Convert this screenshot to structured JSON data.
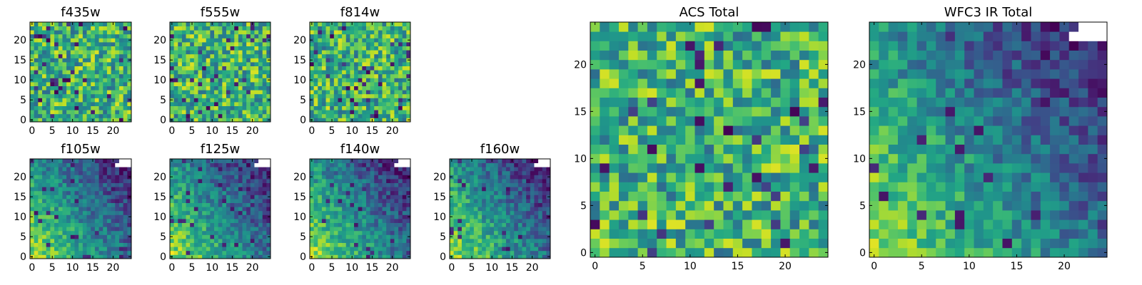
{
  "chart_data": [
    {
      "type": "heatmap",
      "title": "f435w",
      "colormap": "viridis",
      "grid": false,
      "xlim": [
        0,
        24
      ],
      "ylim": [
        0,
        24
      ],
      "x_ticks": [
        "0",
        "5",
        "10",
        "15",
        "20"
      ],
      "y_ticks": [
        "0",
        "5",
        "10",
        "15",
        "20"
      ],
      "seed": 11,
      "pattern": "noise",
      "blank_corner": false
    },
    {
      "type": "heatmap",
      "title": "f555w",
      "colormap": "viridis",
      "grid": false,
      "xlim": [
        0,
        24
      ],
      "ylim": [
        0,
        24
      ],
      "x_ticks": [
        "0",
        "5",
        "10",
        "15",
        "20"
      ],
      "y_ticks": [
        "0",
        "5",
        "10",
        "15",
        "20"
      ],
      "seed": 23,
      "pattern": "noise",
      "blank_corner": false
    },
    {
      "type": "heatmap",
      "title": "f814w",
      "colormap": "viridis",
      "grid": false,
      "xlim": [
        0,
        24
      ],
      "ylim": [
        0,
        24
      ],
      "x_ticks": [
        "0",
        "5",
        "10",
        "15",
        "20"
      ],
      "y_ticks": [
        "0",
        "5",
        "10",
        "15",
        "20"
      ],
      "seed": 37,
      "pattern": "noise",
      "blank_corner": false
    },
    {
      "type": "heatmap",
      "title": "f105w",
      "colormap": "viridis",
      "grid": false,
      "xlim": [
        0,
        24
      ],
      "ylim": [
        0,
        24
      ],
      "x_ticks": [
        "0",
        "5",
        "10",
        "15",
        "20"
      ],
      "y_ticks": [
        "0",
        "5",
        "10",
        "15",
        "20"
      ],
      "seed": 41,
      "pattern": "gradient",
      "blank_corner": true
    },
    {
      "type": "heatmap",
      "title": "f125w",
      "colormap": "viridis",
      "grid": false,
      "xlim": [
        0,
        24
      ],
      "ylim": [
        0,
        24
      ],
      "x_ticks": [
        "0",
        "5",
        "10",
        "15",
        "20"
      ],
      "y_ticks": [
        "0",
        "5",
        "10",
        "15",
        "20"
      ],
      "seed": 53,
      "pattern": "gradient",
      "blank_corner": true
    },
    {
      "type": "heatmap",
      "title": "f140w",
      "colormap": "viridis",
      "grid": false,
      "xlim": [
        0,
        24
      ],
      "ylim": [
        0,
        24
      ],
      "x_ticks": [
        "0",
        "5",
        "10",
        "15",
        "20"
      ],
      "y_ticks": [
        "0",
        "5",
        "10",
        "15",
        "20"
      ],
      "seed": 67,
      "pattern": "gradient",
      "blank_corner": true
    },
    {
      "type": "heatmap",
      "title": "f160w",
      "colormap": "viridis",
      "grid": false,
      "xlim": [
        0,
        24
      ],
      "ylim": [
        0,
        24
      ],
      "x_ticks": [
        "0",
        "5",
        "10",
        "15",
        "20"
      ],
      "y_ticks": [
        "0",
        "5",
        "10",
        "15",
        "20"
      ],
      "seed": 79,
      "pattern": "gradient",
      "blank_corner": true
    },
    {
      "type": "heatmap",
      "title": "ACS Total",
      "colormap": "viridis",
      "grid": false,
      "xlim": [
        0,
        24
      ],
      "ylim": [
        0,
        24
      ],
      "x_ticks": [
        "0",
        "5",
        "10",
        "15",
        "20"
      ],
      "y_ticks": [
        "0",
        "5",
        "10",
        "15",
        "20"
      ],
      "seed": 97,
      "pattern": "noise",
      "blank_corner": false
    },
    {
      "type": "heatmap",
      "title": "WFC3 IR Total",
      "colormap": "viridis",
      "grid": false,
      "xlim": [
        0,
        24
      ],
      "ylim": [
        0,
        24
      ],
      "x_ticks": [
        "0",
        "5",
        "10",
        "15",
        "20"
      ],
      "y_ticks": [
        "0",
        "5",
        "10",
        "15",
        "20"
      ],
      "seed": 113,
      "pattern": "gradient",
      "blank_corner": true
    }
  ]
}
